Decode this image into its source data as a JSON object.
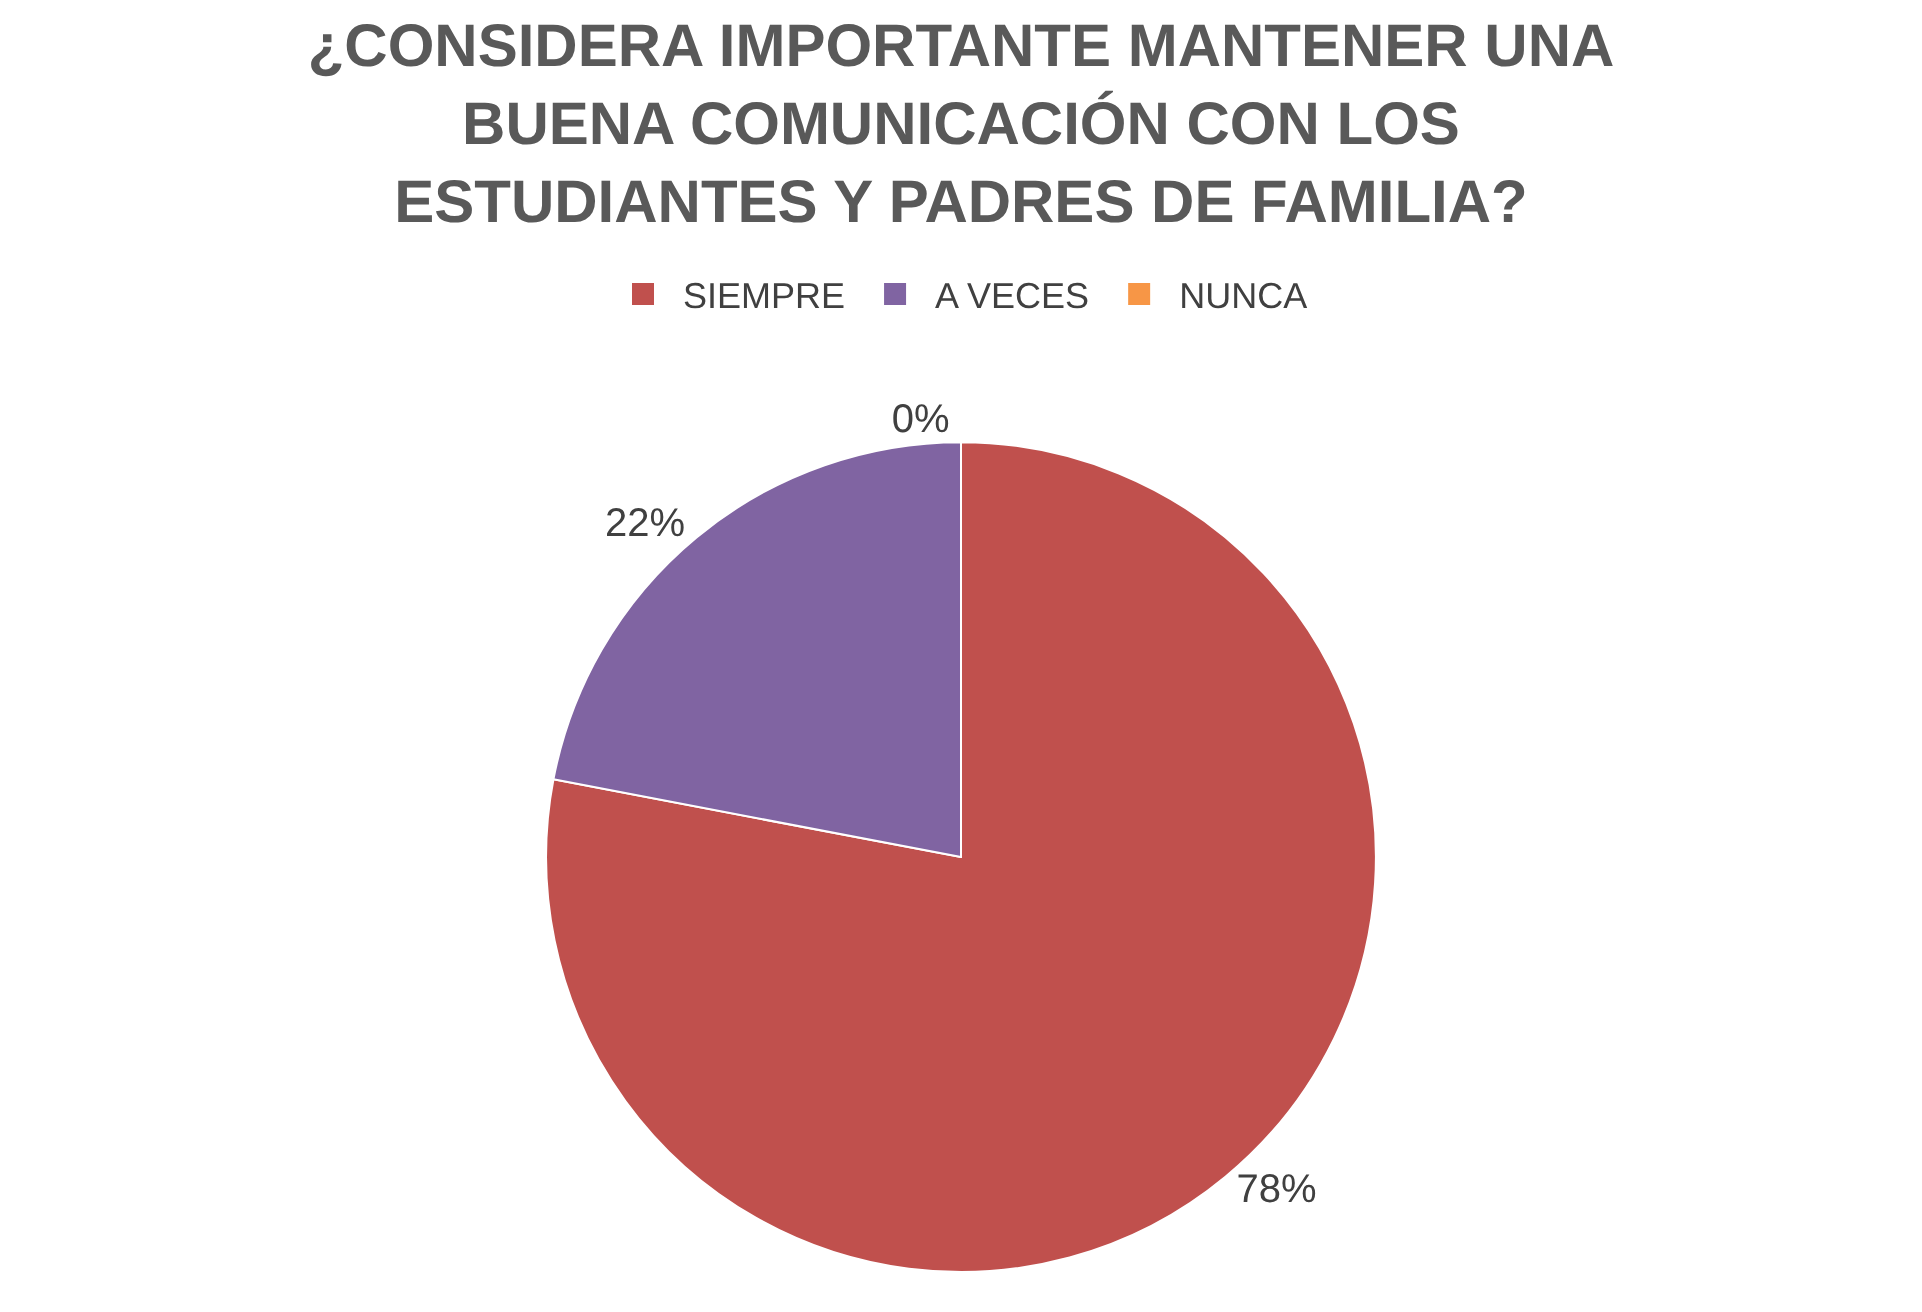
{
  "chart_data": {
    "type": "pie",
    "title": "¿CONSIDERA IMPORTANTE MANTENER UNA\nBUENA COMUNICACIÓN CON LOS\nESTUDIANTES Y PADRES DE FAMILIA?",
    "categories": [
      "SIEMPRE",
      "A VECES",
      "NUNCA"
    ],
    "values": [
      78,
      22,
      0
    ],
    "colors": [
      "#c0504d",
      "#8064a2",
      "#f79646"
    ],
    "value_labels": [
      "78%",
      "22%",
      "0%"
    ],
    "legend": "top"
  }
}
